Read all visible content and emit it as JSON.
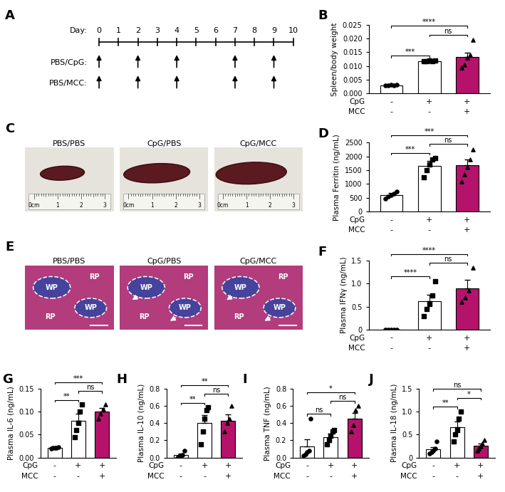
{
  "timeline": {
    "panel": "A",
    "label": "Day:",
    "days": [
      0,
      1,
      2,
      3,
      4,
      5,
      6,
      7,
      8,
      9,
      10
    ],
    "treatments": [
      {
        "name": "PBS/CpG:",
        "days": [
          0,
          2,
          4,
          7,
          9
        ]
      },
      {
        "name": "PBS/MCC:",
        "days": [
          0,
          2,
          4,
          7,
          9
        ]
      }
    ]
  },
  "photos": {
    "panel": "C",
    "images": [
      {
        "title": "PBS/PBS"
      },
      {
        "title": "CpG/PBS"
      },
      {
        "title": "CpG/MCC"
      }
    ],
    "ruler": [
      "0cm",
      "1",
      "2",
      "3"
    ]
  },
  "histology": {
    "panel": "E",
    "images": [
      {
        "title": "PBS/PBS",
        "white_pulp": [
          "WP",
          "WP"
        ],
        "red_pulp": [
          "RP",
          "RP"
        ]
      },
      {
        "title": "CpG/PBS",
        "white_pulp": [
          "WP",
          "WP"
        ],
        "red_pulp": [
          "RP",
          "RP"
        ]
      },
      {
        "title": "CpG/MCC",
        "white_pulp": [
          "WP",
          "WP"
        ],
        "red_pulp": [
          "RP",
          "RP"
        ]
      }
    ]
  },
  "chart_data": [
    {
      "type": "bar",
      "panel": "B",
      "y_label": "Spleen/body weight",
      "conditions": [
        {
          "name": "CpG",
          "values": [
            "-",
            "+",
            "+"
          ]
        },
        {
          "name": "MCC",
          "values": [
            "-",
            "-",
            "+"
          ]
        }
      ],
      "values": [
        0.003,
        0.0118,
        0.0133
      ],
      "errors": [
        0.0001,
        0.0002,
        0.0016
      ],
      "points": [
        [
          0.0029,
          0.003,
          0.0031,
          0.003,
          0.0032
        ],
        [
          0.0116,
          0.0118,
          0.0119,
          0.0117,
          0.012
        ],
        [
          0.0095,
          0.0105,
          0.013,
          0.014,
          0.0195
        ]
      ],
      "colors": [
        "#ffffff",
        "#ffffff",
        "#b5126b"
      ],
      "markers": [
        "circle",
        "square",
        "triangle"
      ],
      "ylim": [
        0,
        0.025
      ],
      "yticks": [
        {
          "value": 0,
          "label": "0.000"
        },
        {
          "value": 0.005,
          "label": "0.005"
        },
        {
          "value": 0.01,
          "label": "0.010"
        },
        {
          "value": 0.015,
          "label": "0.015"
        },
        {
          "value": 0.02,
          "label": "0.020"
        },
        {
          "value": 0.025,
          "label": "0.025"
        }
      ],
      "comparisons": [
        {
          "groups": [
            0,
            1
          ],
          "label": "***"
        },
        {
          "groups": [
            0,
            2
          ],
          "label": "****"
        },
        {
          "groups": [
            1,
            2
          ],
          "label": "ns"
        }
      ]
    },
    {
      "type": "bar",
      "panel": "D",
      "y_label": "Plasma Ferritin (ng/mL)",
      "conditions": [
        {
          "name": "CpG",
          "values": [
            "-",
            "+",
            "+"
          ]
        },
        {
          "name": "MCC",
          "values": [
            "-",
            "-",
            "+"
          ]
        }
      ],
      "values": [
        600,
        1650,
        1680
      ],
      "errors": [
        70,
        180,
        220
      ],
      "points": [
        [
          480,
          540,
          600,
          650,
          720
        ],
        [
          1250,
          1500,
          1700,
          1900,
          1950
        ],
        [
          1100,
          1350,
          1600,
          1900,
          2250
        ]
      ],
      "colors": [
        "#ffffff",
        "#ffffff",
        "#b5126b"
      ],
      "markers": [
        "circle",
        "square",
        "triangle"
      ],
      "ylim": [
        0,
        2500
      ],
      "yticks": [
        0,
        500,
        1000,
        1500,
        2000,
        2500
      ],
      "comparisons": [
        {
          "groups": [
            0,
            1
          ],
          "label": "***"
        },
        {
          "groups": [
            0,
            2
          ],
          "label": "***"
        },
        {
          "groups": [
            1,
            2
          ],
          "label": "ns"
        }
      ]
    },
    {
      "type": "bar",
      "panel": "F",
      "y_label": "Plasma IFNγ (ng/mL)",
      "conditions": [
        {
          "name": "CpG",
          "values": [
            "-",
            "+",
            "+"
          ]
        },
        {
          "name": "MCC",
          "values": [
            "-",
            "-",
            "+"
          ]
        }
      ],
      "values": [
        0.0,
        0.62,
        0.9
      ],
      "errors": [
        0.01,
        0.14,
        0.18
      ],
      "points": [
        [
          0.0,
          0.0,
          0.0,
          0.0,
          0.0
        ],
        [
          0.3,
          0.45,
          0.55,
          0.75,
          1.05
        ],
        [
          0.6,
          0.7,
          0.85,
          1.35
        ]
      ],
      "colors": [
        "#ffffff",
        "#ffffff",
        "#b5126b"
      ],
      "markers": [
        "circle",
        "square",
        "triangle"
      ],
      "ylim": [
        0,
        1.5
      ],
      "yticks": [
        0,
        0.5,
        {
          "value": 1,
          "label": "1.0"
        },
        1.5
      ],
      "comparisons": [
        {
          "groups": [
            0,
            1
          ],
          "label": "****"
        },
        {
          "groups": [
            0,
            2
          ],
          "label": "****"
        },
        {
          "groups": [
            1,
            2
          ],
          "label": "ns"
        }
      ]
    },
    {
      "type": "bar",
      "panel": "G",
      "y_label": "Plasma IL-6 (ng/mL)",
      "conditions": [
        {
          "name": "CpG",
          "values": [
            "-",
            "+",
            "+"
          ]
        },
        {
          "name": "MCC",
          "values": [
            "-",
            "-",
            "+"
          ]
        }
      ],
      "values": [
        0.021,
        0.08,
        0.1
      ],
      "errors": [
        0.001,
        0.016,
        0.008
      ],
      "points": [
        [
          0.02,
          0.021,
          0.021,
          0.021,
          0.022
        ],
        [
          0.045,
          0.06,
          0.075,
          0.1,
          0.115
        ],
        [
          0.085,
          0.095,
          0.105,
          0.115
        ]
      ],
      "colors": [
        "#ffffff",
        "#ffffff",
        "#b5126b"
      ],
      "markers": [
        "circle",
        "square",
        "triangle"
      ],
      "ylim": [
        0,
        0.15
      ],
      "yticks": [
        {
          "value": 0,
          "label": "0.00"
        },
        {
          "value": 0.05,
          "label": "0.05"
        },
        {
          "value": 0.1,
          "label": "0.10"
        },
        {
          "value": 0.15,
          "label": "0.15"
        }
      ],
      "comparisons": [
        {
          "groups": [
            0,
            1
          ],
          "label": "**"
        },
        {
          "groups": [
            0,
            2
          ],
          "label": "***"
        },
        {
          "groups": [
            1,
            2
          ],
          "label": "ns"
        }
      ]
    },
    {
      "type": "bar",
      "panel": "H",
      "y_label": "Plasma IL-10 (ng/mL)",
      "conditions": [
        {
          "name": "CpG",
          "values": [
            "-",
            "+",
            "+"
          ]
        },
        {
          "name": "MCC",
          "values": [
            "-",
            "-",
            "+"
          ]
        }
      ],
      "values": [
        0.03,
        0.4,
        0.43
      ],
      "errors": [
        0.02,
        0.09,
        0.07
      ],
      "points": [
        [
          0.0,
          0.01,
          0.02,
          0.03,
          0.08
        ],
        [
          0.15,
          0.3,
          0.45,
          0.55,
          0.58
        ],
        [
          0.3,
          0.4,
          0.45,
          0.6
        ]
      ],
      "colors": [
        "#ffffff",
        "#ffffff",
        "#b5126b"
      ],
      "markers": [
        "circle",
        "square",
        "triangle"
      ],
      "ylim": [
        0,
        0.8
      ],
      "yticks": [
        {
          "value": 0,
          "label": "0.0"
        },
        0.2,
        0.4,
        0.6,
        0.8
      ],
      "comparisons": [
        {
          "groups": [
            0,
            1
          ],
          "label": "**"
        },
        {
          "groups": [
            0,
            2
          ],
          "label": "**"
        },
        {
          "groups": [
            1,
            2
          ],
          "label": "ns"
        }
      ]
    },
    {
      "type": "bar",
      "panel": "I",
      "y_label": "Plasma TNF (ng/mL)",
      "conditions": [
        {
          "name": "CpG",
          "values": [
            "-",
            "+",
            "+"
          ]
        },
        {
          "name": "MCC",
          "values": [
            "-",
            "-",
            "+"
          ]
        }
      ],
      "values": [
        0.13,
        0.24,
        0.45
      ],
      "errors": [
        0.08,
        0.04,
        0.07
      ],
      "points": [
        [
          0.02,
          0.04,
          0.06,
          0.08,
          0.45
        ],
        [
          0.15,
          0.2,
          0.25,
          0.3,
          0.32
        ],
        [
          0.3,
          0.38,
          0.55,
          0.6
        ]
      ],
      "colors": [
        "#ffffff",
        "#ffffff",
        "#b5126b"
      ],
      "markers": [
        "circle",
        "square",
        "triangle"
      ],
      "ylim": [
        0,
        0.8
      ],
      "yticks": [
        {
          "value": 0,
          "label": "0.0"
        },
        0.2,
        0.4,
        0.6,
        0.8
      ],
      "comparisons": [
        {
          "groups": [
            0,
            1
          ],
          "label": "ns"
        },
        {
          "groups": [
            0,
            2
          ],
          "label": "*"
        },
        {
          "groups": [
            1,
            2
          ],
          "label": "ns"
        }
      ]
    },
    {
      "type": "bar",
      "panel": "J",
      "y_label": "Plasma IL-18 (ng/mL)",
      "conditions": [
        {
          "name": "CpG",
          "values": [
            "-",
            "+",
            "+"
          ]
        },
        {
          "name": "MCC",
          "values": [
            "-",
            "-",
            "+"
          ]
        }
      ],
      "values": [
        0.18,
        0.66,
        0.26
      ],
      "errors": [
        0.05,
        0.12,
        0.04
      ],
      "points": [
        [
          0.08,
          0.12,
          0.15,
          0.2,
          0.35
        ],
        [
          0.35,
          0.5,
          0.6,
          0.85,
          1.0
        ],
        [
          0.15,
          0.2,
          0.25,
          0.3,
          0.38
        ]
      ],
      "colors": [
        "#ffffff",
        "#ffffff",
        "#b5126b"
      ],
      "markers": [
        "circle",
        "square",
        "triangle"
      ],
      "ylim": [
        0,
        1.5
      ],
      "yticks": [
        0,
        0.5,
        {
          "value": 1,
          "label": "1.0"
        },
        1.5
      ],
      "comparisons": [
        {
          "groups": [
            0,
            1
          ],
          "label": "**"
        },
        {
          "groups": [
            0,
            2
          ],
          "label": "ns"
        },
        {
          "groups": [
            1,
            2
          ],
          "label": "*"
        }
      ]
    }
  ]
}
